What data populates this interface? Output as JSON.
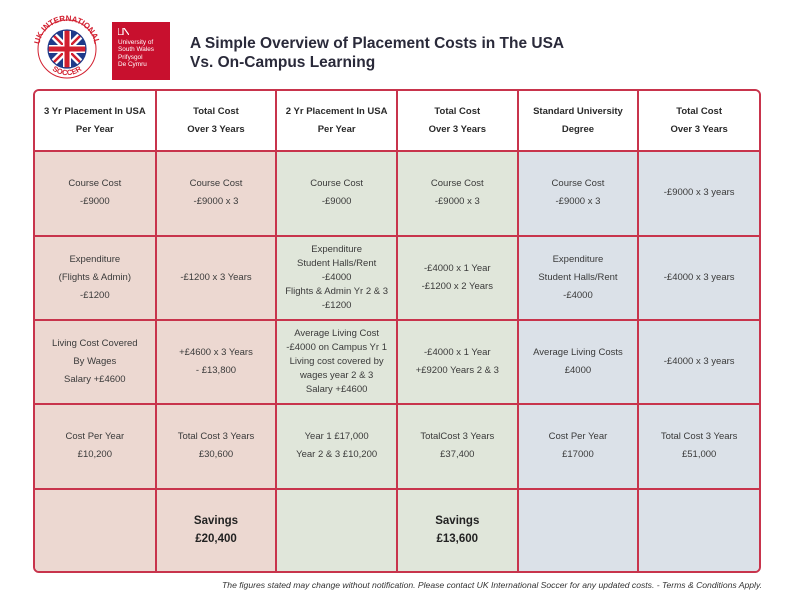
{
  "header": {
    "ukis_logo_text": "UK INTERNATIONAL SOCCER",
    "usw_logo_lines": [
      "University of",
      "South Wales",
      "Prifysgol",
      "De Cymru"
    ],
    "title_lines": [
      "A Simple Overview of Placement Costs in The USA",
      "Vs. On-Campus Learning"
    ]
  },
  "table": {
    "headers": [
      [
        "3 Yr Placement In USA",
        "Per Year"
      ],
      [
        "Total Cost",
        "Over 3 Years"
      ],
      [
        "2 Yr Placement In USA",
        "Per Year"
      ],
      [
        "Total Cost",
        "Over 3 Years"
      ],
      [
        "Standard University",
        "Degree"
      ],
      [
        "Total Cost",
        "Over 3 Years"
      ]
    ],
    "rows": [
      [
        [
          "Course Cost",
          "-£9000"
        ],
        [
          "Course Cost",
          "-£9000 x 3"
        ],
        [
          "Course Cost",
          "-£9000"
        ],
        [
          "Course Cost",
          "-£9000 x 3"
        ],
        [
          "Course Cost",
          "-£9000 x 3"
        ],
        [
          "-£9000 x 3 years"
        ]
      ],
      [
        [
          "Expenditure",
          "(Flights & Admin)",
          "-£1200"
        ],
        [
          "-£1200 x 3 Years"
        ],
        [
          "Expenditure",
          "Student Halls/Rent",
          "-£4000",
          "Flights & Admin Yr 2 & 3",
          "-£1200"
        ],
        [
          "-£4000 x 1 Year",
          "-£1200 x 2 Years"
        ],
        [
          "Expenditure",
          "Student Halls/Rent",
          "-£4000"
        ],
        [
          "-£4000 x 3 years"
        ]
      ],
      [
        [
          "Living Cost Covered",
          "By Wages",
          "Salary +£4600"
        ],
        [
          "+£4600 x 3 Years",
          "- £13,800"
        ],
        [
          "Average Living Cost",
          "-£4000 on Campus Yr 1",
          "Living cost covered by",
          "wages year 2 & 3",
          "Salary +£4600"
        ],
        [
          "-£4000 x 1 Year",
          "+£9200 Years 2 & 3"
        ],
        [
          "Average Living Costs",
          "£4000"
        ],
        [
          "-£4000 x 3 years"
        ]
      ],
      [
        [
          "Cost Per Year",
          "£10,200"
        ],
        [
          "Total Cost 3 Years",
          "£30,600"
        ],
        [
          "Year 1 £17,000",
          "Year 2 & 3 £10,200"
        ],
        [
          "TotalCost 3 Years",
          "£37,400"
        ],
        [
          "Cost Per Year",
          "£17000"
        ],
        [
          "Total Cost 3 Years",
          "£51,000"
        ]
      ]
    ],
    "savings": [
      [],
      [
        "Savings",
        "£20,400"
      ],
      [],
      [
        "Savings",
        "£13,600"
      ],
      [],
      []
    ]
  },
  "disclaimer": "The figures stated may change without notification. Please contact UK International Soccer for any updated costs. - Terms & Conditions Apply.",
  "colors": {
    "border": "#c8344c",
    "usa3_fill": "#ecd8d1",
    "usa2_fill": "#e0e6da",
    "uni_fill": "#dbe1e8",
    "usw_red": "#c8102e"
  }
}
